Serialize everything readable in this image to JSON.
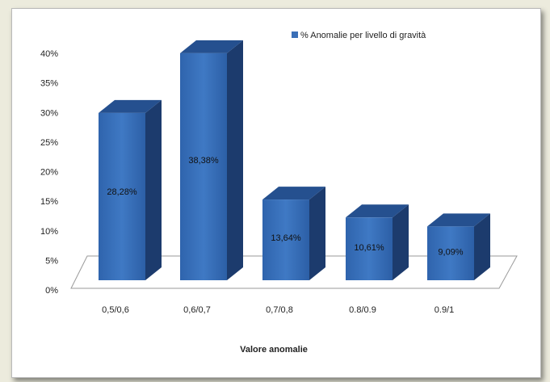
{
  "chart_data": {
    "type": "bar",
    "style": "3d-column",
    "categories": [
      "0,5/0,6",
      "0,6/0,7",
      "0,7/0,8",
      "0.8/0.9",
      "0.9/1"
    ],
    "series": [
      {
        "name": "% Anomalie per livello di gravità",
        "values": [
          28.28,
          38.38,
          13.64,
          10.61,
          9.09
        ],
        "data_labels": [
          "28,28%",
          "38,38%",
          "13,64%",
          "10,61%",
          "9,09%"
        ],
        "color": "#3a6fb7"
      }
    ],
    "y_ticks": [
      "0%",
      "5%",
      "10%",
      "15%",
      "20%",
      "25%",
      "30%",
      "35%",
      "40%"
    ],
    "ylim": [
      0,
      40
    ],
    "xlabel": "Valore anomalie",
    "ylabel": "",
    "title": "",
    "legend_position": "top-right",
    "grid": false
  }
}
